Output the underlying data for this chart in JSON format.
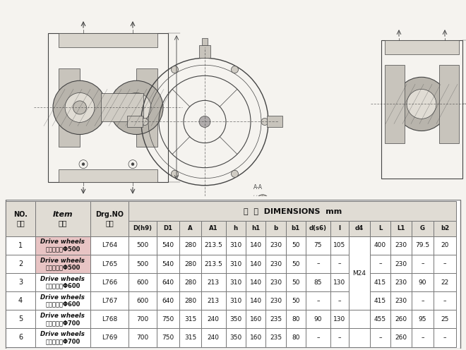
{
  "bg_color": "#f5f3ef",
  "table_bg": "#ffffff",
  "header_bg": "#e0dcd4",
  "border_color": "#777777",
  "text_color": "#111111",
  "item_highlight_bg": "#e8c4c4",
  "draw_color": "#444444",
  "title_row": {
    "dim_header": "尺  寸  DIMENSIONS  mm",
    "dim_cols": [
      "D(h9)",
      "D1",
      "A",
      "A1",
      "h",
      "h1",
      "b",
      "b1",
      "d(s6)",
      "l",
      "d4",
      "L",
      "L1",
      "G",
      "b2"
    ]
  },
  "rows": [
    {
      "no": "1",
      "item_en": "Drive wheels",
      "item_cn": "主动车轮组Φ500",
      "drg": "L764",
      "dims": [
        "500",
        "540",
        "280",
        "213.5",
        "310",
        "140",
        "230",
        "50",
        "75",
        "105",
        "",
        "400",
        "230",
        "79.5",
        "20"
      ],
      "highlight": true
    },
    {
      "no": "2",
      "item_en": "Drive wheels",
      "item_cn": "被动车轮组Φ500",
      "drg": "L765",
      "dims": [
        "500",
        "540",
        "280",
        "213.5",
        "310",
        "140",
        "230",
        "50",
        "–",
        "–",
        "",
        "–",
        "230",
        "–",
        "–"
      ],
      "highlight": true
    },
    {
      "no": "3",
      "item_en": "Drive wheels",
      "item_cn": "主动车轮组Φ600",
      "drg": "L766",
      "dims": [
        "600",
        "640",
        "280",
        "213",
        "310",
        "140",
        "230",
        "50",
        "85",
        "130",
        "",
        "415",
        "230",
        "90",
        "22"
      ],
      "highlight": false
    },
    {
      "no": "4",
      "item_en": "Drive wheels",
      "item_cn": "主动车轮组Φ600",
      "drg": "L767",
      "dims": [
        "600",
        "640",
        "280",
        "213",
        "310",
        "140",
        "230",
        "50",
        "–",
        "–",
        "",
        "415",
        "230",
        "–",
        "–"
      ],
      "highlight": false
    },
    {
      "no": "5",
      "item_en": "Drive wheels",
      "item_cn": "主动车轮组Φ700",
      "drg": "L768",
      "dims": [
        "700",
        "750",
        "315",
        "240",
        "350",
        "160",
        "235",
        "80",
        "90",
        "130",
        "",
        "455",
        "260",
        "95",
        "25"
      ],
      "highlight": false
    },
    {
      "no": "6",
      "item_en": "Drive wheels",
      "item_cn": "主动车轮组Φ700",
      "drg": "L769",
      "dims": [
        "700",
        "750",
        "315",
        "240",
        "350",
        "160",
        "235",
        "80",
        "–",
        "–",
        "",
        "–",
        "260",
        "–",
        "–"
      ],
      "highlight": false
    }
  ],
  "merged_cell_d4": "M24"
}
